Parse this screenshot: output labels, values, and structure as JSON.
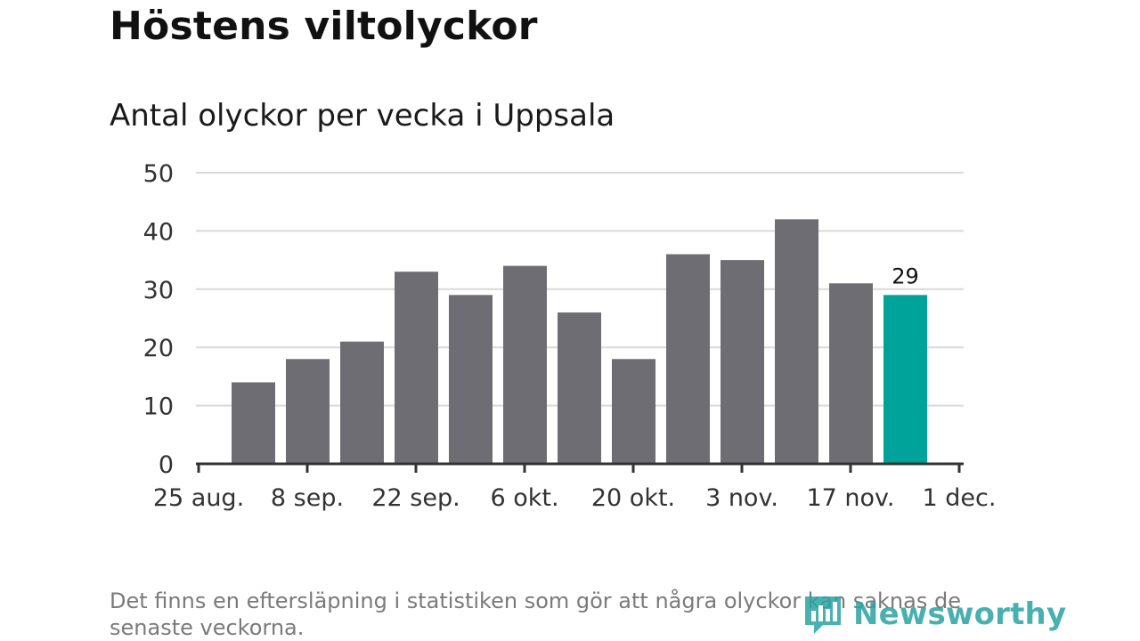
{
  "header": {
    "title": "Höstens viltolyckor",
    "subtitle": "Antal olyckor per vecka i Uppsala"
  },
  "chart_data": {
    "type": "bar",
    "title": "Höstens viltolyckor",
    "subtitle": "Antal olyckor per vecka i Uppsala",
    "xlabel": "",
    "ylabel": "",
    "ylim": [
      0,
      50
    ],
    "yticks": [
      "0",
      "10",
      "20",
      "30",
      "40",
      "50"
    ],
    "xtick_labels": [
      "25 aug.",
      "8 sep.",
      "22 sep.",
      "6 okt.",
      "20 okt.",
      "3 nov.",
      "17 nov.",
      "1 dec."
    ],
    "values": [
      14,
      18,
      21,
      33,
      29,
      34,
      26,
      18,
      36,
      35,
      42,
      31,
      29
    ],
    "highlight_index": 12,
    "highlight_label": "29",
    "grid": true,
    "colors": {
      "bar": "#6e6d73",
      "highlight": "#00a39a",
      "grid": "#d9d9d9",
      "axis": "#333333"
    }
  },
  "footer": {
    "note": "Det finns en eftersläpning i statistiken som gör att några olyckor kan saknas de senaste veckorna.",
    "logo_text": "Newsworthy",
    "logo_icon": "newsworthy-logo-icon"
  }
}
